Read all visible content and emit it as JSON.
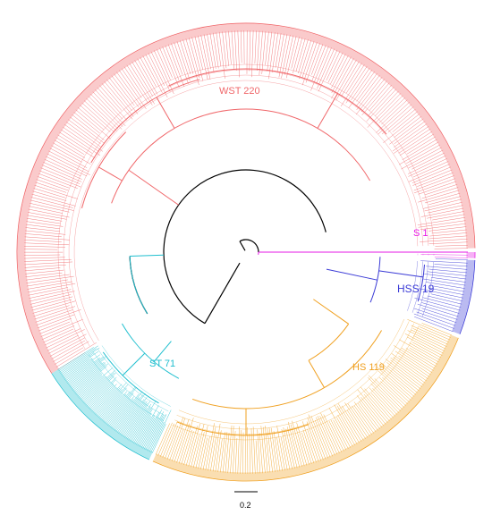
{
  "figure": {
    "type": "circular-phylogenetic-tree",
    "scale_bar_label": "0.2",
    "root_color": "#000000",
    "clades": [
      {
        "id": "wst",
        "label": "WST 220",
        "color": "#f0676a",
        "leaf_count": 220
      },
      {
        "id": "s",
        "label": "S 1",
        "color": "#e619e6",
        "leaf_count": 1
      },
      {
        "id": "hss",
        "label": "HSS 19",
        "color": "#3a3ad6",
        "leaf_count": 19
      },
      {
        "id": "hs",
        "label": "HS 119",
        "color": "#f0a020",
        "leaf_count": 119
      },
      {
        "id": "st",
        "label": "ST 71",
        "color": "#1fbfcf",
        "leaf_count": 71
      }
    ]
  }
}
